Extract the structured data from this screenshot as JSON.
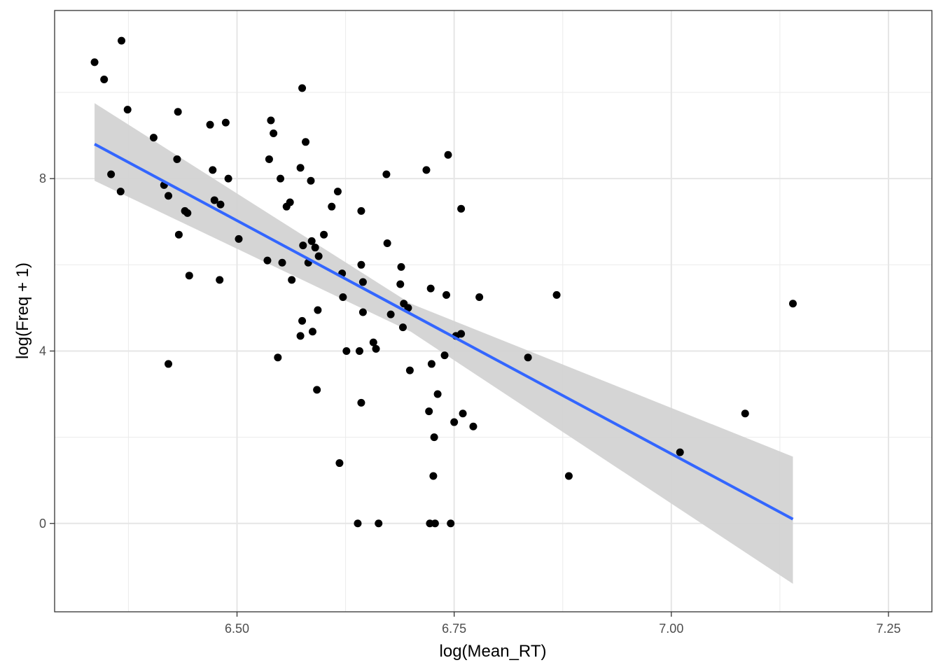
{
  "chart_data": {
    "type": "scatter",
    "title": "",
    "xlabel": "log(Mean_RT)",
    "ylabel": "log(Freq + 1)",
    "xlim": [
      6.29,
      7.3
    ],
    "ylim": [
      -2.05,
      11.9
    ],
    "x_ticks": [
      6.5,
      6.75,
      7.0,
      7.25
    ],
    "x_tick_labels": [
      "6.50",
      "6.75",
      "7.00",
      "7.25"
    ],
    "x_minor_ticks": [
      6.375,
      6.625,
      6.875,
      7.125
    ],
    "y_ticks": [
      0,
      4,
      8
    ],
    "y_tick_labels": [
      "0",
      "4",
      "8"
    ],
    "y_minor_ticks": [
      2,
      6,
      10
    ],
    "grid": true,
    "points": [
      [
        6.336,
        10.7
      ],
      [
        6.347,
        10.3
      ],
      [
        6.367,
        11.2
      ],
      [
        6.374,
        9.6
      ],
      [
        6.355,
        8.1
      ],
      [
        6.366,
        7.7
      ],
      [
        6.404,
        8.95
      ],
      [
        6.416,
        7.85
      ],
      [
        6.431,
        8.45
      ],
      [
        6.432,
        9.55
      ],
      [
        6.421,
        7.6
      ],
      [
        6.433,
        6.7
      ],
      [
        6.421,
        3.7
      ],
      [
        6.44,
        7.25
      ],
      [
        6.443,
        7.2
      ],
      [
        6.445,
        5.75
      ],
      [
        6.469,
        9.25
      ],
      [
        6.472,
        8.2
      ],
      [
        6.474,
        7.5
      ],
      [
        6.48,
        5.65
      ],
      [
        6.481,
        7.4
      ],
      [
        6.487,
        9.3
      ],
      [
        6.49,
        8.0
      ],
      [
        6.502,
        6.6
      ],
      [
        6.535,
        6.1
      ],
      [
        6.537,
        8.45
      ],
      [
        6.539,
        9.35
      ],
      [
        6.542,
        9.05
      ],
      [
        6.547,
        3.85
      ],
      [
        6.55,
        8.0
      ],
      [
        6.552,
        6.05
      ],
      [
        6.557,
        7.35
      ],
      [
        6.561,
        7.45
      ],
      [
        6.563,
        5.65
      ],
      [
        6.573,
        4.35
      ],
      [
        6.573,
        8.25
      ],
      [
        6.575,
        4.7
      ],
      [
        6.575,
        10.1
      ],
      [
        6.576,
        6.45
      ],
      [
        6.579,
        8.85
      ],
      [
        6.582,
        6.05
      ],
      [
        6.585,
        7.95
      ],
      [
        6.586,
        6.55
      ],
      [
        6.587,
        4.45
      ],
      [
        6.59,
        6.4
      ],
      [
        6.592,
        3.1
      ],
      [
        6.593,
        4.95
      ],
      [
        6.594,
        6.2
      ],
      [
        6.6,
        6.7
      ],
      [
        6.609,
        7.35
      ],
      [
        6.616,
        7.7
      ],
      [
        6.618,
        1.4
      ],
      [
        6.621,
        5.8
      ],
      [
        6.622,
        5.25
      ],
      [
        6.626,
        4.0
      ],
      [
        6.639,
        0.0
      ],
      [
        6.641,
        4.0
      ],
      [
        6.643,
        2.8
      ],
      [
        6.643,
        7.25
      ],
      [
        6.643,
        6.0
      ],
      [
        6.645,
        5.6
      ],
      [
        6.645,
        4.9
      ],
      [
        6.657,
        4.2
      ],
      [
        6.66,
        4.05
      ],
      [
        6.663,
        0.0
      ],
      [
        6.672,
        8.1
      ],
      [
        6.673,
        6.5
      ],
      [
        6.677,
        4.85
      ],
      [
        6.688,
        5.55
      ],
      [
        6.689,
        5.95
      ],
      [
        6.691,
        4.55
      ],
      [
        6.692,
        5.1
      ],
      [
        6.697,
        5.0
      ],
      [
        6.699,
        3.55
      ],
      [
        6.718,
        8.2
      ],
      [
        6.721,
        2.6
      ],
      [
        6.722,
        0.0
      ],
      [
        6.723,
        5.45
      ],
      [
        6.724,
        3.7
      ],
      [
        6.726,
        1.1
      ],
      [
        6.727,
        2.0
      ],
      [
        6.728,
        0.0
      ],
      [
        6.731,
        3.0
      ],
      [
        6.739,
        3.9
      ],
      [
        6.741,
        5.3
      ],
      [
        6.743,
        8.55
      ],
      [
        6.746,
        0.0
      ],
      [
        6.75,
        2.35
      ],
      [
        6.752,
        4.35
      ],
      [
        6.758,
        7.3
      ],
      [
        6.758,
        4.4
      ],
      [
        6.76,
        2.55
      ],
      [
        6.772,
        2.25
      ],
      [
        6.779,
        5.25
      ],
      [
        6.835,
        3.85
      ],
      [
        6.868,
        5.3
      ],
      [
        6.882,
        1.1
      ],
      [
        7.01,
        1.65
      ],
      [
        7.085,
        2.55
      ],
      [
        7.14,
        5.1
      ]
    ],
    "fit_line": {
      "method": "lm",
      "color": "#3366FF",
      "x": [
        6.336,
        7.14
      ],
      "y": [
        8.8,
        0.1
      ]
    },
    "confidence_band": {
      "color": "#D3D3D3",
      "x": [
        6.336,
        6.7,
        7.14
      ],
      "upper": [
        9.75,
        5.1,
        1.55
      ],
      "lower": [
        7.95,
        4.45,
        -1.4
      ]
    }
  }
}
